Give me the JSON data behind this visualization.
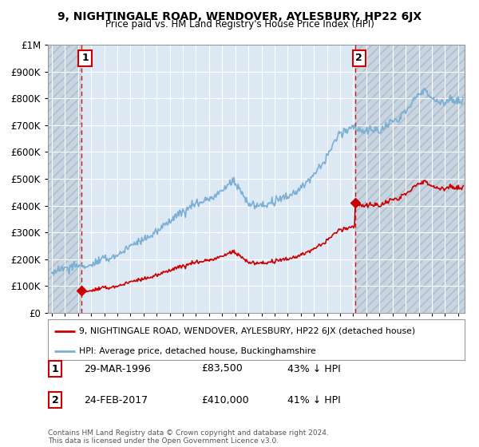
{
  "title": "9, NIGHTINGALE ROAD, WENDOVER, AYLESBURY, HP22 6JX",
  "subtitle": "Price paid vs. HM Land Registry's House Price Index (HPI)",
  "ylim": [
    0,
    1000000
  ],
  "xlim_start": 1993.7,
  "xlim_end": 2025.5,
  "point1_x": 1996.24,
  "point1_y": 83500,
  "point2_x": 2017.15,
  "point2_y": 410000,
  "point1_label": "1",
  "point2_label": "2",
  "point1_date": "29-MAR-1996",
  "point1_price": "£83,500",
  "point1_hpi": "43% ↓ HPI",
  "point2_date": "24-FEB-2017",
  "point2_price": "£410,000",
  "point2_hpi": "41% ↓ HPI",
  "legend_line1": "9, NIGHTINGALE ROAD, WENDOVER, AYLESBURY, HP22 6JX (detached house)",
  "legend_line2": "HPI: Average price, detached house, Buckinghamshire",
  "footer": "Contains HM Land Registry data © Crown copyright and database right 2024.\nThis data is licensed under the Open Government Licence v3.0.",
  "hpi_color": "#7bafd4",
  "price_color": "#cc0000",
  "grid_color": "#cccccc",
  "bg_color": "#ffffff",
  "plot_bg_color": "#dce9f5",
  "hatch_bg_color": "#c8d4e0"
}
